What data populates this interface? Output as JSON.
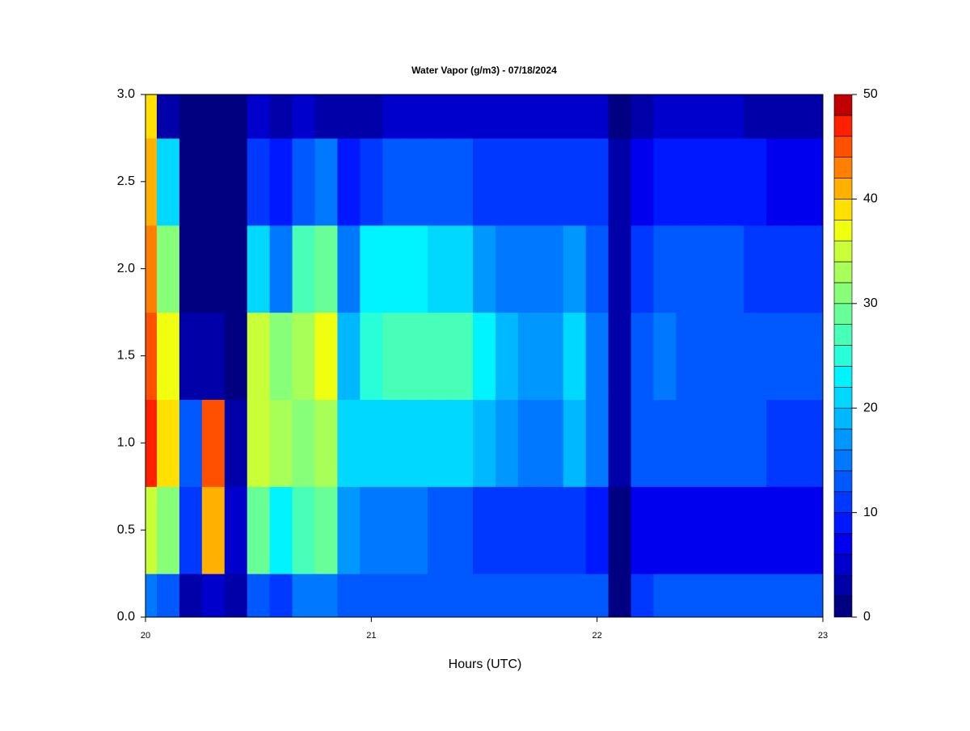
{
  "chart_data": {
    "type": "contour",
    "title": "Water Vapor (g/m3) - 07/18/2024",
    "xlabel": "Hours (UTC)",
    "xlim": [
      20,
      23
    ],
    "xticks": [
      20,
      21,
      22,
      23
    ],
    "ylim": [
      0,
      3
    ],
    "yticks": [
      {
        "value": 0,
        "label": "0.0"
      },
      {
        "value": 0.5,
        "label": "0.5"
      },
      {
        "value": 1,
        "label": "1.0"
      },
      {
        "value": 1.5,
        "label": "1.5"
      },
      {
        "value": 2,
        "label": "2.0"
      },
      {
        "value": 2.5,
        "label": "2.5"
      },
      {
        "value": 3,
        "label": "3.0"
      }
    ],
    "zlim": [
      0,
      50
    ],
    "zticks": [
      0,
      10,
      20,
      30,
      40,
      50
    ],
    "colors": [
      "#000080",
      "#0000a8",
      "#0000cc",
      "#0000ee",
      "#0018ff",
      "#0038ff",
      "#0058ff",
      "#0078ff",
      "#0098ff",
      "#00b8ff",
      "#00d8ff",
      "#00f4ff",
      "#28ffd8",
      "#48ffb8",
      "#68ff98",
      "#88ff78",
      "#a8ff58",
      "#c8ff38",
      "#f0ff10",
      "#ffe000",
      "#ffb000",
      "#ff8000",
      "#ff5000",
      "#ff2000",
      "#c00000"
    ],
    "x": [
      20,
      20.1,
      20.2,
      20.3,
      20.4,
      20.5,
      20.6,
      20.7,
      20.8,
      20.9,
      21,
      21.1,
      21.2,
      21.3,
      21.4,
      21.5,
      21.6,
      21.7,
      21.8,
      21.9,
      22,
      22.1,
      22.2,
      22.3,
      22.4,
      22.5,
      22.6,
      22.7,
      22.8,
      22.9,
      23
    ],
    "y": [
      0,
      0.5,
      1,
      1.5,
      2,
      2.5,
      3
    ],
    "z": [
      [
        14,
        34,
        46,
        44,
        42,
        40,
        38
      ],
      [
        12,
        30,
        38,
        36,
        30,
        20,
        2
      ],
      [
        2,
        10,
        12,
        2,
        1,
        1,
        1
      ],
      [
        4,
        40,
        44,
        2,
        1,
        1,
        1
      ],
      [
        2,
        4,
        2,
        1,
        1,
        1,
        1
      ],
      [
        12,
        28,
        34,
        34,
        20,
        10,
        4
      ],
      [
        10,
        22,
        32,
        30,
        14,
        8,
        2
      ],
      [
        14,
        26,
        30,
        32,
        26,
        12,
        4
      ],
      [
        14,
        28,
        32,
        36,
        28,
        14,
        2
      ],
      [
        12,
        16,
        20,
        18,
        14,
        8,
        2
      ],
      [
        12,
        14,
        20,
        24,
        22,
        10,
        2
      ],
      [
        12,
        14,
        20,
        26,
        22,
        12,
        4
      ],
      [
        12,
        14,
        20,
        26,
        22,
        12,
        4
      ],
      [
        12,
        12,
        20,
        26,
        20,
        12,
        4
      ],
      [
        12,
        12,
        20,
        26,
        20,
        12,
        4
      ],
      [
        12,
        10,
        18,
        22,
        16,
        10,
        4
      ],
      [
        12,
        10,
        16,
        18,
        14,
        10,
        4
      ],
      [
        12,
        10,
        14,
        16,
        14,
        10,
        4
      ],
      [
        12,
        10,
        14,
        16,
        14,
        10,
        4
      ],
      [
        12,
        10,
        18,
        20,
        16,
        10,
        4
      ],
      [
        12,
        8,
        14,
        14,
        12,
        10,
        4
      ],
      [
        1,
        1,
        2,
        2,
        2,
        2,
        1
      ],
      [
        10,
        6,
        12,
        12,
        10,
        6,
        2
      ],
      [
        12,
        6,
        12,
        14,
        12,
        8,
        4
      ],
      [
        12,
        6,
        12,
        12,
        12,
        8,
        4
      ],
      [
        12,
        6,
        12,
        12,
        12,
        8,
        4
      ],
      [
        12,
        6,
        12,
        12,
        12,
        8,
        4
      ],
      [
        12,
        6,
        12,
        12,
        10,
        8,
        2
      ],
      [
        12,
        6,
        10,
        12,
        10,
        6,
        2
      ],
      [
        12,
        6,
        10,
        12,
        10,
        6,
        2
      ],
      [
        12,
        6,
        10,
        12,
        10,
        6,
        2
      ]
    ]
  }
}
